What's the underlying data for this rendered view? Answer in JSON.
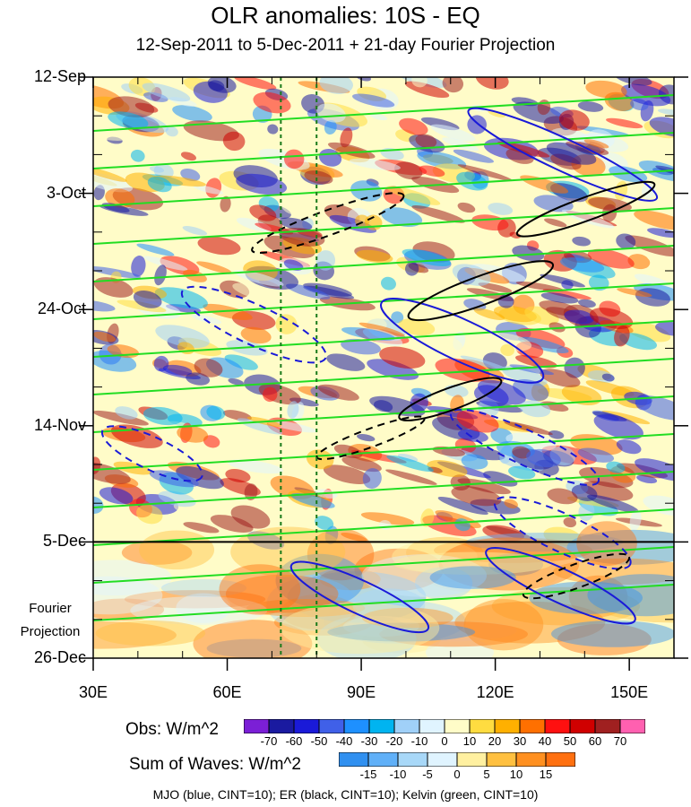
{
  "chart_data": {
    "type": "heatmap",
    "title": "OLR anomalies: 10S - EQ",
    "subtitle": "12-Sep-2011 to 5-Dec-2011 + 21-day Fourier Projection",
    "x": {
      "tick_labels": [
        "30E",
        "60E",
        "90E",
        "120E",
        "150E"
      ],
      "tick_values": [
        30,
        60,
        90,
        120,
        150
      ],
      "range": [
        30,
        160
      ]
    },
    "y": {
      "tick_labels": [
        "12-Sep",
        "3-Oct",
        "24-Oct",
        "14-Nov",
        "5-Dec",
        "26-Dec"
      ],
      "range": [
        "12-Sep-2011",
        "26-Dec-2011"
      ],
      "reversed": true
    },
    "projection_label": [
      "Fourier",
      "Projection"
    ],
    "vertical_reference_lines_lon": [
      72,
      80
    ],
    "horizontal_reference_line": "5-Dec",
    "obs_colorbar": {
      "label": "Obs: W/m^2",
      "ticks": [
        "-70",
        "-60",
        "-50",
        "-40",
        "-30",
        "-20",
        "-10",
        "0",
        "10",
        "20",
        "30",
        "40",
        "50",
        "60",
        "70"
      ],
      "colors": [
        "#7b1fd6",
        "#1a1aa0",
        "#1a1ad8",
        "#4060e8",
        "#1e90ff",
        "#00b4f0",
        "#a0d0f8",
        "#e0f4ff",
        "#fffcc8",
        "#ffdc40",
        "#ffb000",
        "#ff7000",
        "#ff1010",
        "#d00000",
        "#a02020",
        "#ff60b0"
      ]
    },
    "waves_colorbar": {
      "label": "Sum of Waves: W/m^2",
      "ticks": [
        "-15",
        "-10",
        "-5",
        "0",
        "5",
        "10",
        "15"
      ],
      "colors": [
        "#3090f0",
        "#60b0f8",
        "#a8d8f8",
        "#e0f4ff",
        "#fff0a0",
        "#ffc040",
        "#ff9020",
        "#ff7010"
      ]
    },
    "footnote": "MJO (blue, CINT=10); ER (black, CINT=10); Kelvin (green, CINT=10)"
  }
}
